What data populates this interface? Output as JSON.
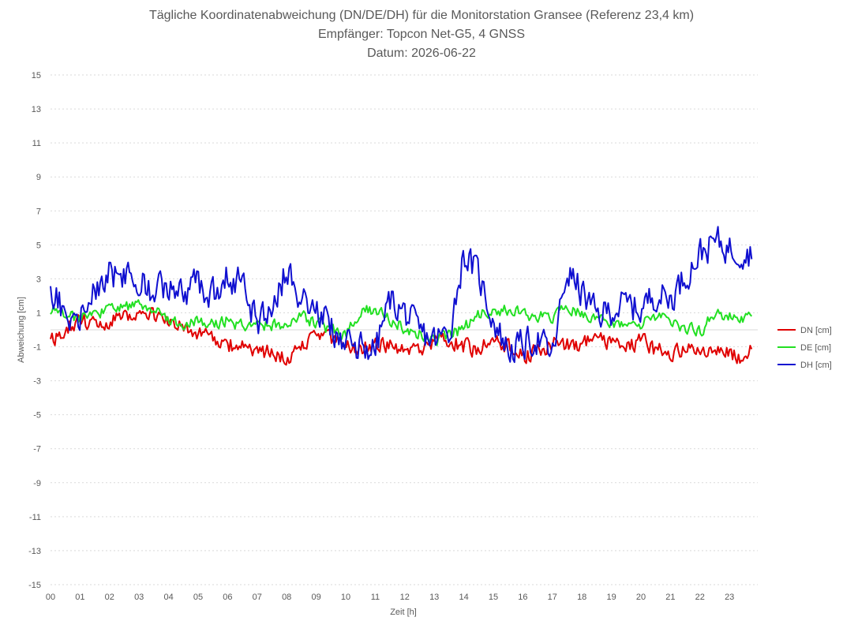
{
  "chart_data": {
    "type": "line",
    "title": "Tägliche Koordinatenabweichung (DN/DE/DH) für die Monitorstation Gransee (Referenz 23,4 km)",
    "subtitle": "Empfänger: Topcon Net-G5, 4 GNSS",
    "date_line": "Datum: 2026-06-22",
    "xlabel": "Zeit [h]",
    "ylabel": "Abweichung [cm]",
    "x_ticks": [
      "00",
      "01",
      "02",
      "03",
      "04",
      "05",
      "06",
      "07",
      "08",
      "09",
      "10",
      "11",
      "12",
      "13",
      "14",
      "15",
      "16",
      "17",
      "18",
      "19",
      "20",
      "21",
      "22",
      "23"
    ],
    "y_ticks": [
      15,
      13,
      11,
      9,
      7,
      5,
      3,
      1,
      -1,
      -3,
      -5,
      -7,
      -9,
      -11,
      -13,
      -15
    ],
    "ylim": [
      -15,
      15
    ],
    "xlim": [
      0,
      24
    ],
    "grid": true,
    "legend_position": "right",
    "series": [
      {
        "name": "DN [cm]",
        "color": "#e00000",
        "keypoints": [
          [
            0.0,
            -0.8
          ],
          [
            0.5,
            0.2
          ],
          [
            1.0,
            0.5
          ],
          [
            1.5,
            0.3
          ],
          [
            2.0,
            0.6
          ],
          [
            2.5,
            1.0
          ],
          [
            3.0,
            0.8
          ],
          [
            3.5,
            0.9
          ],
          [
            4.0,
            0.5
          ],
          [
            4.5,
            0.2
          ],
          [
            5.0,
            -0.3
          ],
          [
            5.5,
            -0.6
          ],
          [
            6.0,
            -0.9
          ],
          [
            6.5,
            -1.0
          ],
          [
            7.0,
            -1.2
          ],
          [
            7.5,
            -1.4
          ],
          [
            8.0,
            -1.8
          ],
          [
            8.5,
            -0.9
          ],
          [
            9.0,
            -0.2
          ],
          [
            9.5,
            -0.6
          ],
          [
            10.0,
            -0.9
          ],
          [
            10.5,
            -1.1
          ],
          [
            11.0,
            -0.8
          ],
          [
            11.5,
            -1.0
          ],
          [
            12.0,
            -1.4
          ],
          [
            12.5,
            -1.1
          ],
          [
            13.0,
            -0.7
          ],
          [
            13.5,
            -0.6
          ],
          [
            14.0,
            -1.0
          ],
          [
            14.5,
            -1.2
          ],
          [
            15.0,
            -0.6
          ],
          [
            15.5,
            -0.9
          ],
          [
            16.0,
            -1.6
          ],
          [
            16.5,
            -1.3
          ],
          [
            17.0,
            -0.8
          ],
          [
            17.5,
            -0.9
          ],
          [
            18.0,
            -0.8
          ],
          [
            18.5,
            -0.6
          ],
          [
            19.0,
            -0.9
          ],
          [
            19.5,
            -1.1
          ],
          [
            20.0,
            -0.7
          ],
          [
            20.5,
            -1.2
          ],
          [
            21.0,
            -1.3
          ],
          [
            21.5,
            -1.0
          ],
          [
            22.0,
            -1.5
          ],
          [
            22.5,
            -1.2
          ],
          [
            23.0,
            -1.4
          ],
          [
            23.5,
            -1.6
          ],
          [
            23.75,
            -1.3
          ]
        ],
        "amplitude": 0.7
      },
      {
        "name": "DE [cm]",
        "color": "#22e022",
        "keypoints": [
          [
            0.0,
            1.2
          ],
          [
            0.5,
            0.9
          ],
          [
            1.0,
            0.6
          ],
          [
            1.5,
            0.9
          ],
          [
            2.0,
            1.2
          ],
          [
            2.5,
            1.3
          ],
          [
            3.0,
            1.5
          ],
          [
            3.5,
            1.2
          ],
          [
            4.0,
            0.6
          ],
          [
            4.5,
            0.3
          ],
          [
            5.0,
            0.5
          ],
          [
            5.5,
            0.3
          ],
          [
            6.0,
            0.6
          ],
          [
            6.5,
            0.2
          ],
          [
            7.0,
            0.3
          ],
          [
            7.5,
            0.2
          ],
          [
            8.0,
            0.4
          ],
          [
            8.5,
            0.8
          ],
          [
            9.0,
            0.4
          ],
          [
            9.5,
            0.0
          ],
          [
            10.0,
            -0.3
          ],
          [
            10.5,
            1.1
          ],
          [
            11.0,
            1.2
          ],
          [
            11.5,
            0.6
          ],
          [
            12.0,
            0.1
          ],
          [
            12.5,
            -0.2
          ],
          [
            13.0,
            -0.6
          ],
          [
            13.5,
            -0.3
          ],
          [
            14.0,
            0.1
          ],
          [
            14.5,
            0.9
          ],
          [
            15.0,
            1.0
          ],
          [
            15.5,
            1.2
          ],
          [
            16.0,
            0.9
          ],
          [
            16.5,
            0.8
          ],
          [
            17.0,
            0.7
          ],
          [
            17.5,
            1.3
          ],
          [
            18.0,
            0.9
          ],
          [
            18.5,
            0.7
          ],
          [
            19.0,
            0.4
          ],
          [
            19.5,
            0.1
          ],
          [
            20.0,
            0.3
          ],
          [
            20.5,
            0.8
          ],
          [
            21.0,
            0.4
          ],
          [
            21.5,
            0.1
          ],
          [
            22.0,
            -0.1
          ],
          [
            22.5,
            0.9
          ],
          [
            23.0,
            0.8
          ],
          [
            23.5,
            0.7
          ],
          [
            23.75,
            0.8
          ]
        ],
        "amplitude": 0.5
      },
      {
        "name": "DH [cm]",
        "color": "#1010d0",
        "keypoints": [
          [
            0.0,
            2.8
          ],
          [
            0.5,
            0.8
          ],
          [
            1.0,
            0.9
          ],
          [
            1.5,
            2.3
          ],
          [
            2.0,
            3.3
          ],
          [
            2.5,
            3.2
          ],
          [
            3.0,
            2.8
          ],
          [
            3.5,
            2.2
          ],
          [
            4.0,
            2.5
          ],
          [
            4.5,
            2.2
          ],
          [
            5.0,
            2.8
          ],
          [
            5.5,
            2.1
          ],
          [
            6.0,
            3.2
          ],
          [
            6.5,
            2.6
          ],
          [
            7.0,
            0.3
          ],
          [
            7.5,
            1.5
          ],
          [
            8.0,
            3.5
          ],
          [
            8.5,
            2.0
          ],
          [
            9.0,
            1.2
          ],
          [
            9.5,
            0.2
          ],
          [
            10.0,
            -1.0
          ],
          [
            10.5,
            -0.9
          ],
          [
            11.0,
            -1.2
          ],
          [
            11.5,
            1.8
          ],
          [
            12.0,
            1.0
          ],
          [
            12.5,
            -0.2
          ],
          [
            13.0,
            -0.6
          ],
          [
            13.5,
            -0.2
          ],
          [
            14.0,
            4.5
          ],
          [
            14.5,
            3.2
          ],
          [
            15.0,
            0.6
          ],
          [
            15.5,
            -1.2
          ],
          [
            16.0,
            -0.9
          ],
          [
            16.5,
            -0.5
          ],
          [
            17.0,
            -1.6
          ],
          [
            17.5,
            3.5
          ],
          [
            18.0,
            2.2
          ],
          [
            18.5,
            0.8
          ],
          [
            19.0,
            1.2
          ],
          [
            19.5,
            1.5
          ],
          [
            20.0,
            1.2
          ],
          [
            20.5,
            2.2
          ],
          [
            21.0,
            1.8
          ],
          [
            21.5,
            3.2
          ],
          [
            22.0,
            4.5
          ],
          [
            22.5,
            5.2
          ],
          [
            23.0,
            4.8
          ],
          [
            23.5,
            4.6
          ],
          [
            23.75,
            4.5
          ]
        ],
        "amplitude": 1.3
      }
    ]
  }
}
